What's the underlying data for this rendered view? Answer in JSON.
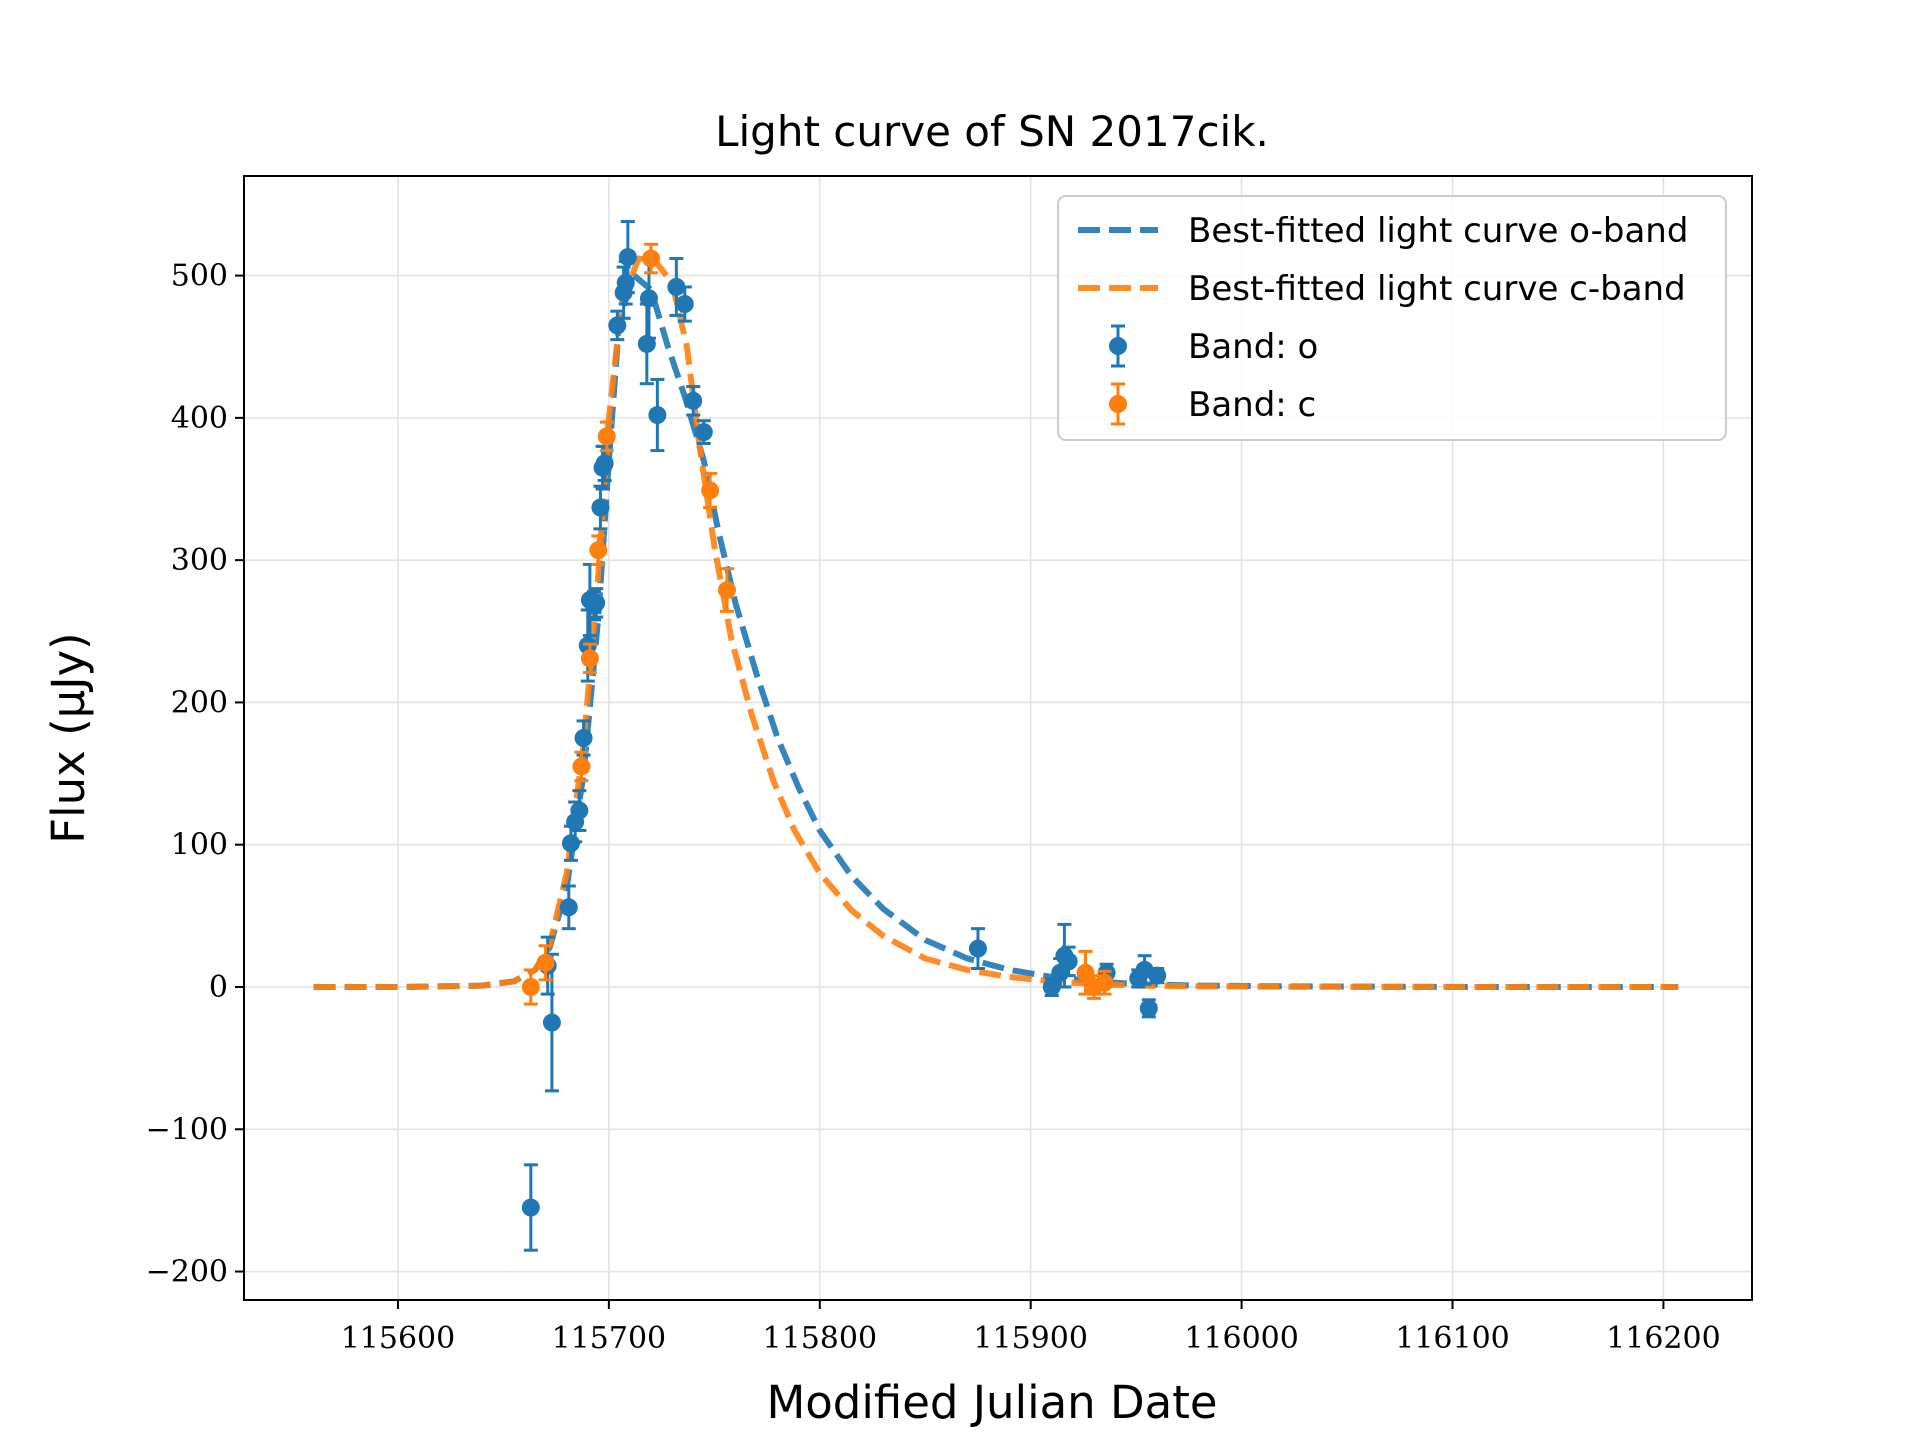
{
  "chart_data": {
    "type": "scatter",
    "title": "Light curve of SN 2017cik.",
    "xlabel": "Modified Julian Date",
    "ylabel": "Flux (μJy)",
    "xlim": [
      115527,
      116242
    ],
    "ylim": [
      -220,
      570
    ],
    "x_ticks": [
      115600,
      115700,
      115800,
      115900,
      116000,
      116100,
      116200
    ],
    "x_tick_labels": [
      "115600",
      "115700",
      "115800",
      "115900",
      "116000",
      "116100",
      "116200"
    ],
    "y_ticks": [
      -200,
      -100,
      0,
      100,
      200,
      300,
      400,
      500
    ],
    "y_tick_labels": [
      "−200",
      "−100",
      "0",
      "100",
      "200",
      "300",
      "400",
      "500"
    ],
    "grid": true,
    "legend_position": "top-right",
    "colors": {
      "o": "#1f77b4",
      "c": "#ff7f0e"
    },
    "lines": [
      {
        "name": "Best-fitted light curve o-band",
        "color": "#1f77b4",
        "style": "dashed",
        "x": [
          115560,
          115600,
          115640,
          115655,
          115665,
          115672,
          115680,
          115688,
          115695,
          115700,
          115705,
          115712,
          115720,
          115728,
          115736,
          115745,
          115752,
          115760,
          115770,
          115780,
          115790,
          115800,
          115815,
          115830,
          115850,
          115870,
          115890,
          115910,
          115930,
          115950,
          115980,
          116020,
          116100,
          116207
        ],
        "y": [
          0,
          0,
          1,
          4,
          12,
          28,
          70,
          150,
          260,
          370,
          470,
          500,
          490,
          450,
          415,
          370,
          320,
          270,
          220,
          175,
          140,
          110,
          78,
          55,
          33,
          20,
          12,
          7,
          4,
          2,
          1,
          0.5,
          0,
          0
        ]
      },
      {
        "name": "Best-fitted light curve c-band",
        "color": "#ff7f0e",
        "style": "dashed",
        "x": [
          115560,
          115600,
          115640,
          115655,
          115665,
          115672,
          115680,
          115688,
          115695,
          115700,
          115706,
          115714,
          115722,
          115730,
          115737,
          115743,
          115750,
          115758,
          115768,
          115778,
          115788,
          115800,
          115815,
          115830,
          115850,
          115870,
          115890,
          115910,
          115930,
          115950,
          115980,
          116020,
          116100,
          116207
        ],
        "y": [
          0,
          0,
          1,
          4,
          12,
          30,
          80,
          170,
          290,
          400,
          480,
          512,
          510,
          495,
          450,
          380,
          310,
          245,
          190,
          145,
          110,
          80,
          54,
          36,
          20,
          12,
          7,
          4,
          2,
          1,
          0.5,
          0.2,
          0,
          0
        ]
      }
    ],
    "series": [
      {
        "name": "Band: o",
        "color": "#1f77b4",
        "x": [
          115663,
          115671,
          115673,
          115681,
          115682,
          115684,
          115686,
          115688,
          115690,
          115691,
          115693,
          115694,
          115696,
          115697,
          115698,
          115704,
          115707,
          115708,
          115709,
          115718,
          115719,
          115723,
          115732,
          115736,
          115740,
          115745,
          115875,
          115910,
          115914,
          115916,
          115918,
          115936,
          115951,
          115954,
          115956,
          115960
        ],
        "y": [
          -155,
          15,
          -25,
          56,
          101,
          116,
          124,
          175,
          240,
          272,
          268,
          270,
          337,
          365,
          368,
          465,
          488,
          495,
          513,
          452,
          484,
          402,
          492,
          480,
          412,
          390,
          27,
          0,
          10,
          22,
          18,
          10,
          6,
          12,
          -15,
          8
        ],
        "err": [
          30,
          20,
          48,
          15,
          12,
          14,
          14,
          12,
          25,
          25,
          10,
          10,
          15,
          15,
          12,
          10,
          18,
          15,
          25,
          28,
          28,
          25,
          20,
          12,
          10,
          8,
          14,
          6,
          10,
          22,
          10,
          6,
          6,
          10,
          6,
          5
        ]
      },
      {
        "name": "Band: c",
        "color": "#ff7f0e",
        "x": [
          115663,
          115670,
          115687,
          115691,
          115695,
          115699,
          115720,
          115748,
          115756,
          115926,
          115930,
          115935
        ],
        "y": [
          0,
          17,
          155,
          231,
          307,
          387,
          512,
          349,
          279,
          10,
          0,
          3
        ],
        "err": [
          12,
          12,
          10,
          10,
          10,
          10,
          10,
          12,
          15,
          15,
          8,
          8
        ]
      }
    ]
  }
}
